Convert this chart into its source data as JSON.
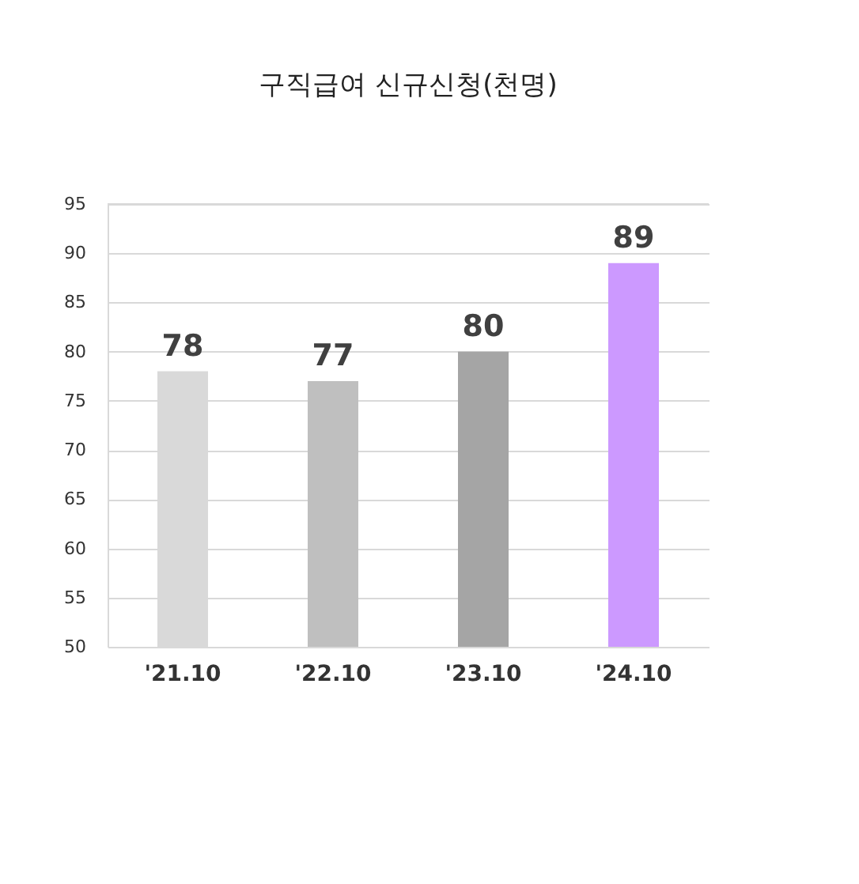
{
  "chart_data": {
    "type": "bar",
    "title": "구직급여 신규신청(천명)",
    "categories": [
      "'21.10",
      "'22.10",
      "'23.10",
      "'24.10"
    ],
    "values": [
      78,
      77,
      80,
      89
    ],
    "colors": [
      "#d9d9d9",
      "#bfbfbf",
      "#a5a5a5",
      "#cc99ff"
    ],
    "ylim": [
      50,
      95
    ],
    "yticks": [
      50,
      55,
      60,
      65,
      70,
      75,
      80,
      85,
      90,
      95
    ],
    "grid": "y",
    "data_labels": true
  }
}
